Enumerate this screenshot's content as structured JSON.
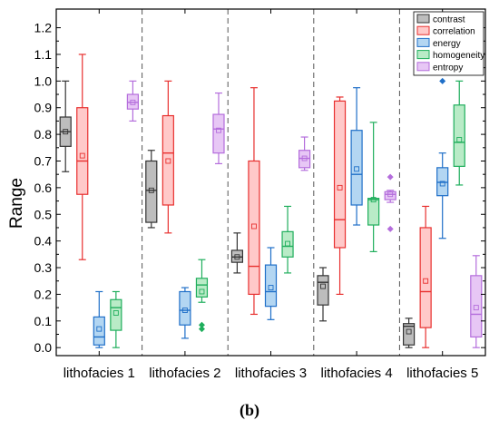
{
  "chart_data": {
    "type": "box",
    "caption": "(b)",
    "xlabel": "",
    "ylabel": "Range",
    "ylim": [
      -0.03,
      1.27
    ],
    "yticks": [
      0.0,
      0.1,
      0.2,
      0.3,
      0.4,
      0.5,
      0.6,
      0.7,
      0.8,
      0.9,
      1.0,
      1.1,
      1.2
    ],
    "ytick_labels": [
      "0.0",
      "0.1",
      "0.2",
      "0.3",
      "0.4",
      "0.5",
      "0.6",
      "0.7",
      "0.8",
      "0.9",
      "1.0",
      "1.1",
      "1.2"
    ],
    "categories": [
      "lithofacies 1",
      "lithofacies 2",
      "lithofacies 3",
      "lithofacies 4",
      "lithofacies 5"
    ],
    "grid": false,
    "category_separators": "dashed",
    "legend_position": "top-right",
    "series": [
      {
        "name": "contrast",
        "fill": "#bdbdbd",
        "stroke": "#333333",
        "boxes": [
          {
            "whisker_low": 0.66,
            "q1": 0.755,
            "median": 0.81,
            "q3": 0.865,
            "whisker_high": 1.0,
            "mean": 0.81,
            "outliers": []
          },
          {
            "whisker_low": 0.45,
            "q1": 0.47,
            "median": 0.59,
            "q3": 0.7,
            "whisker_high": 0.74,
            "mean": 0.59,
            "outliers": []
          },
          {
            "whisker_low": 0.28,
            "q1": 0.32,
            "median": 0.34,
            "q3": 0.365,
            "whisker_high": 0.43,
            "mean": 0.34,
            "outliers": []
          },
          {
            "whisker_low": 0.1,
            "q1": 0.16,
            "median": 0.245,
            "q3": 0.27,
            "whisker_high": 0.3,
            "mean": 0.23,
            "outliers": []
          },
          {
            "whisker_low": 0.0,
            "q1": 0.01,
            "median": 0.08,
            "q3": 0.09,
            "whisker_high": 0.11,
            "mean": 0.06,
            "outliers": []
          }
        ]
      },
      {
        "name": "correlation",
        "fill": "#ffc9c9",
        "stroke": "#e8302f",
        "boxes": [
          {
            "whisker_low": 0.33,
            "q1": 0.575,
            "median": 0.7,
            "q3": 0.9,
            "whisker_high": 1.1,
            "mean": 0.72,
            "outliers": []
          },
          {
            "whisker_low": 0.43,
            "q1": 0.535,
            "median": 0.73,
            "q3": 0.87,
            "whisker_high": 1.0,
            "mean": 0.7,
            "outliers": []
          },
          {
            "whisker_low": 0.125,
            "q1": 0.2,
            "median": 0.305,
            "q3": 0.7,
            "whisker_high": 0.975,
            "mean": 0.455,
            "outliers": []
          },
          {
            "whisker_low": 0.2,
            "q1": 0.375,
            "median": 0.48,
            "q3": 0.925,
            "whisker_high": 0.94,
            "mean": 0.6,
            "outliers": []
          },
          {
            "whisker_low": 0.0,
            "q1": 0.075,
            "median": 0.21,
            "q3": 0.45,
            "whisker_high": 0.53,
            "mean": 0.25,
            "outliers": []
          }
        ]
      },
      {
        "name": "energy",
        "fill": "#b3d6f2",
        "stroke": "#1f6fc8",
        "boxes": [
          {
            "whisker_low": 0.0,
            "q1": 0.01,
            "median": 0.04,
            "q3": 0.115,
            "whisker_high": 0.21,
            "mean": 0.07,
            "outliers": []
          },
          {
            "whisker_low": 0.035,
            "q1": 0.085,
            "median": 0.14,
            "q3": 0.21,
            "whisker_high": 0.225,
            "mean": 0.14,
            "outliers": []
          },
          {
            "whisker_low": 0.105,
            "q1": 0.155,
            "median": 0.21,
            "q3": 0.31,
            "whisker_high": 0.375,
            "mean": 0.225,
            "outliers": []
          },
          {
            "whisker_low": 0.46,
            "q1": 0.535,
            "median": 0.65,
            "q3": 0.815,
            "whisker_high": 0.975,
            "mean": 0.67,
            "outliers": []
          },
          {
            "whisker_low": 0.41,
            "q1": 0.57,
            "median": 0.62,
            "q3": 0.675,
            "whisker_high": 0.73,
            "mean": 0.615,
            "outliers": [
              1.0
            ]
          }
        ]
      },
      {
        "name": "homogeneity",
        "fill": "#b9ebc7",
        "stroke": "#1fae5c",
        "boxes": [
          {
            "whisker_low": 0.0,
            "q1": 0.065,
            "median": 0.15,
            "q3": 0.18,
            "whisker_high": 0.21,
            "mean": 0.13,
            "outliers": []
          },
          {
            "whisker_low": 0.17,
            "q1": 0.19,
            "median": 0.235,
            "q3": 0.26,
            "whisker_high": 0.33,
            "mean": 0.21,
            "outliers": [
              0.085,
              0.07
            ]
          },
          {
            "whisker_low": 0.28,
            "q1": 0.34,
            "median": 0.38,
            "q3": 0.435,
            "whisker_high": 0.53,
            "mean": 0.39,
            "outliers": []
          },
          {
            "whisker_low": 0.36,
            "q1": 0.46,
            "median": 0.555,
            "q3": 0.56,
            "whisker_high": 0.845,
            "mean": 0.555,
            "outliers": []
          },
          {
            "whisker_low": 0.61,
            "q1": 0.68,
            "median": 0.77,
            "q3": 0.91,
            "whisker_high": 1.0,
            "mean": 0.78,
            "outliers": []
          }
        ]
      },
      {
        "name": "entropy",
        "fill": "#e7c7f5",
        "stroke": "#b46ddc",
        "boxes": [
          {
            "whisker_low": 0.85,
            "q1": 0.895,
            "median": 0.92,
            "q3": 0.95,
            "whisker_high": 1.0,
            "mean": 0.92,
            "outliers": []
          },
          {
            "whisker_low": 0.69,
            "q1": 0.73,
            "median": 0.82,
            "q3": 0.875,
            "whisker_high": 0.955,
            "mean": 0.815,
            "outliers": []
          },
          {
            "whisker_low": 0.665,
            "q1": 0.675,
            "median": 0.71,
            "q3": 0.74,
            "whisker_high": 0.79,
            "mean": 0.71,
            "outliers": []
          },
          {
            "whisker_low": 0.545,
            "q1": 0.555,
            "median": 0.575,
            "q3": 0.585,
            "whisker_high": 0.59,
            "mean": 0.575,
            "outliers": [
              0.64,
              0.445
            ]
          },
          {
            "whisker_low": 0.0,
            "q1": 0.04,
            "median": 0.125,
            "q3": 0.27,
            "whisker_high": 0.345,
            "mean": 0.15,
            "outliers": []
          }
        ]
      }
    ]
  }
}
